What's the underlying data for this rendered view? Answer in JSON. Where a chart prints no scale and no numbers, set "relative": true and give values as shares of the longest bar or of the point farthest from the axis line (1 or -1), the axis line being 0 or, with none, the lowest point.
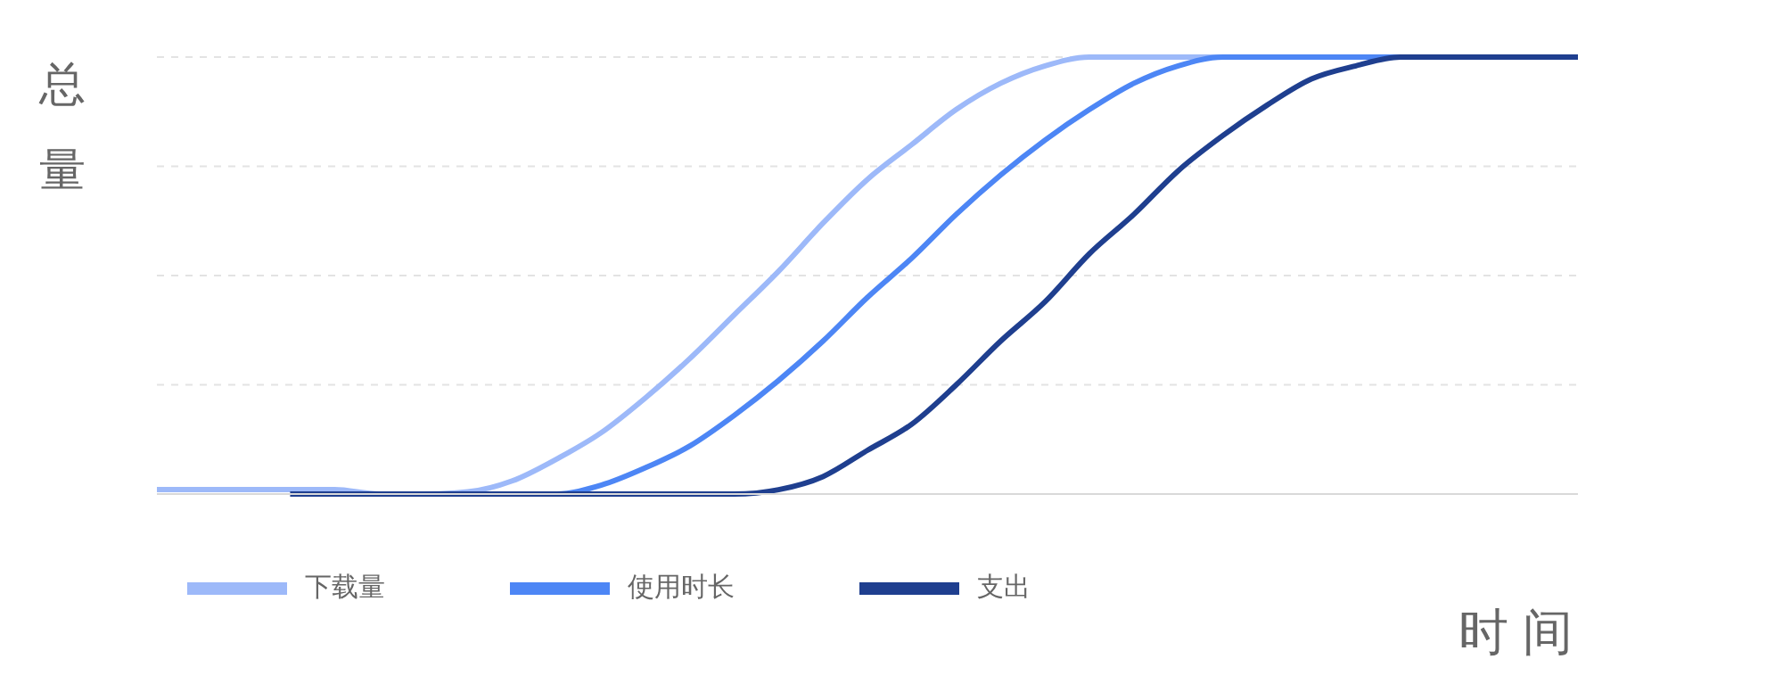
{
  "chart_data": {
    "type": "line",
    "relative": true,
    "xlabel": "时间",
    "ylabel": "总量",
    "categories": [
      null,
      null,
      null,
      null,
      null,
      null,
      null,
      null,
      null,
      null,
      null,
      null,
      null,
      null,
      null,
      null,
      null,
      null,
      null,
      null,
      null,
      null,
      null,
      null,
      null,
      null,
      null,
      null,
      null,
      null,
      null,
      null,
      null
    ],
    "series": [
      {
        "name": "下载量",
        "color": "#9db9f9",
        "values": [
          0.01,
          0.01,
          0.01,
          0.01,
          0.01,
          0,
          0,
          0.005,
          0.03,
          0.08,
          0.14,
          0.22,
          0.31,
          0.41,
          0.51,
          0.62,
          0.72,
          0.8,
          0.88,
          0.94,
          0.98,
          1,
          1,
          1,
          1,
          null,
          null,
          null,
          null,
          null,
          null,
          null,
          null
        ]
      },
      {
        "name": "使用时长",
        "color": "#4d86f5",
        "values": [
          null,
          null,
          null,
          null,
          null,
          null,
          0,
          0,
          0,
          0,
          0.02,
          0.06,
          0.11,
          0.18,
          0.26,
          0.35,
          0.45,
          0.54,
          0.64,
          0.73,
          0.81,
          0.88,
          0.94,
          0.98,
          1,
          1,
          1,
          1,
          1,
          null,
          null,
          null,
          null
        ]
      },
      {
        "name": "支出",
        "color": "#1f3f8f",
        "values": [
          null,
          null,
          null,
          0,
          0,
          0,
          0,
          0,
          0,
          0,
          0,
          0,
          0,
          0,
          0.01,
          0.04,
          0.1,
          0.16,
          0.25,
          0.35,
          0.44,
          0.55,
          0.64,
          0.74,
          0.82,
          0.89,
          0.95,
          0.98,
          1,
          1,
          1,
          1,
          1
        ]
      }
    ],
    "grid": "y",
    "legend": "bottom left",
    "marker": "none",
    "line_style": "solid"
  }
}
